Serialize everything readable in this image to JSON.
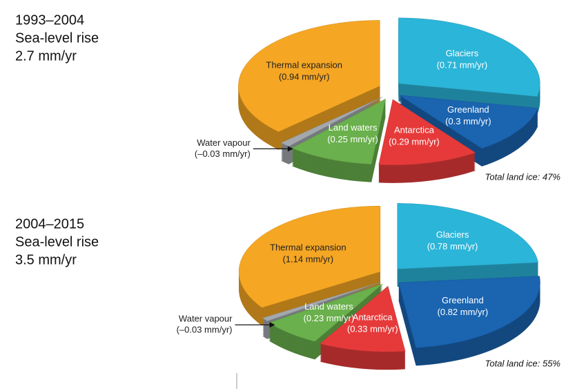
{
  "chart_data": [
    {
      "type": "pie",
      "title": "1993–2004",
      "subtitle": "Sea-level rise",
      "total": "2.7 mm/yr",
      "categories": [
        "Glaciers",
        "Greenland",
        "Antarctica",
        "Land waters",
        "Water vapour",
        "Thermal expansion"
      ],
      "values": [
        0.71,
        0.3,
        0.29,
        0.25,
        -0.03,
        0.94
      ],
      "value_labels": [
        "(0.71 mm/yr)",
        "(0.3 mm/yr)",
        "(0.29 mm/yr)",
        "(0.25 mm/yr)",
        "(–0.03 mm/yr)",
        "(0.94 mm/yr)"
      ],
      "colors": [
        "#2bb5d8",
        "#1a64b0",
        "#e63a3a",
        "#6ab04c",
        "#a3a8ad",
        "#f5a623"
      ],
      "annotation": "Total land ice: 47%"
    },
    {
      "type": "pie",
      "title": "2004–2015",
      "subtitle": "Sea-level rise",
      "total": "3.5 mm/yr",
      "categories": [
        "Glaciers",
        "Greenland",
        "Antarctica",
        "Land waters",
        "Water vapour",
        "Thermal expansion"
      ],
      "values": [
        0.78,
        0.82,
        0.33,
        0.23,
        -0.03,
        1.14
      ],
      "value_labels": [
        "(0.78 mm/yr)",
        "(0.82 mm/yr)",
        "(0.33 mm/yr)",
        "(0.23 mm/yr)",
        "(–0.03 mm/yr)",
        "(1.14 mm/yr)"
      ],
      "colors": [
        "#2bb5d8",
        "#1a64b0",
        "#e63a3a",
        "#6ab04c",
        "#a3a8ad",
        "#f5a623"
      ],
      "annotation": "Total land ice: 55%"
    }
  ]
}
